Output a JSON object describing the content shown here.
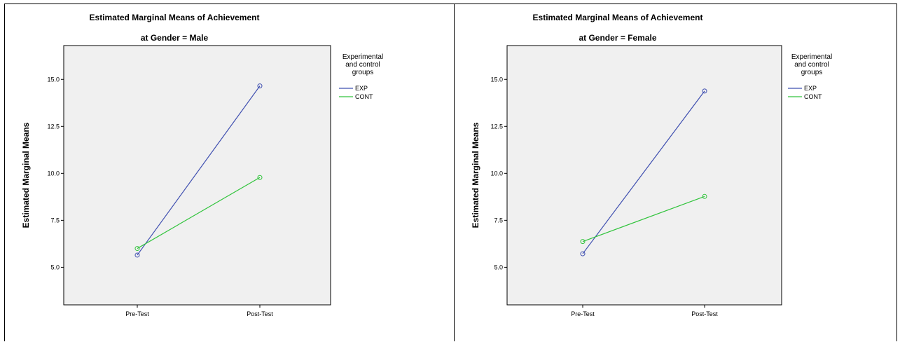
{
  "chart_data": [
    {
      "type": "line",
      "title": "Estimated Marginal Means of Achievement",
      "subtitle": "at Gender = Male",
      "xlabel": "",
      "ylabel": "Estimated Marginal Means",
      "categories": [
        "Pre-Test",
        "Post-Test"
      ],
      "yticks": [
        "5.0",
        "7.5",
        "10.0",
        "12.5",
        "15.0"
      ],
      "ytick_values": [
        5.0,
        7.5,
        10.0,
        12.5,
        15.0
      ],
      "ylim": [
        3.0,
        16.8
      ],
      "grid": false,
      "plot_background": "#f0f0f0",
      "legend": {
        "title_lines": [
          "Experimental",
          "and control",
          "groups"
        ],
        "placement": "right"
      },
      "series": [
        {
          "name": "EXP",
          "color": "#3f4fb0",
          "values": [
            5.65,
            14.65
          ]
        },
        {
          "name": "CONT",
          "color": "#33c43e",
          "values": [
            6.0,
            9.78
          ]
        }
      ]
    },
    {
      "type": "line",
      "title": "Estimated Marginal Means of Achievement",
      "subtitle": "at Gender = Female",
      "xlabel": "",
      "ylabel": "Estimated Marginal Means",
      "categories": [
        "Pre-Test",
        "Post-Test"
      ],
      "yticks": [
        "5.0",
        "7.5",
        "10.0",
        "12.5",
        "15.0"
      ],
      "ytick_values": [
        5.0,
        7.5,
        10.0,
        12.5,
        15.0
      ],
      "ylim": [
        3.0,
        16.8
      ],
      "grid": false,
      "plot_background": "#f0f0f0",
      "legend": {
        "title_lines": [
          "Experimental",
          "and control",
          "groups"
        ],
        "placement": "right"
      },
      "series": [
        {
          "name": "EXP",
          "color": "#3f4fb0",
          "values": [
            5.72,
            14.38
          ]
        },
        {
          "name": "CONT",
          "color": "#33c43e",
          "values": [
            6.37,
            8.77
          ]
        }
      ]
    }
  ]
}
